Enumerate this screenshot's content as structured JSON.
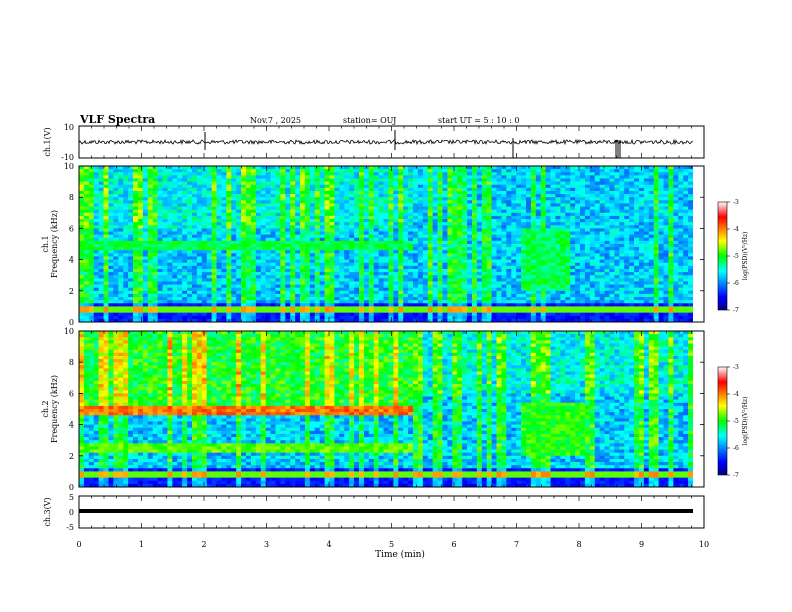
{
  "header": {
    "title": "VLF Spectra",
    "date": "Nov.7 , 2025",
    "station": "station= OUJ",
    "start": "start UT = 5 : 10 : 0"
  },
  "chart_data": [
    {
      "type": "line",
      "ylabel": "ch.1(V)",
      "ylim": [
        -10,
        10
      ],
      "yticks": [
        "10",
        "-10"
      ],
      "xlim": [
        0,
        10
      ],
      "description_free": true
    },
    {
      "type": "heatmap",
      "ylabel_line1": "ch.1",
      "ylabel_line2": "Frequency (kHz)",
      "ylim": [
        0,
        10
      ],
      "yticks": [
        "0",
        "2",
        "4",
        "6",
        "8",
        "10"
      ],
      "xlim": [
        0,
        10
      ],
      "colorbar": {
        "label": "log(PSD)(V²/Hz)",
        "range": [
          -7,
          -3
        ],
        "ticks": [
          "-3",
          "-4",
          "-5",
          "-6",
          "-7"
        ]
      }
    },
    {
      "type": "heatmap",
      "ylabel_line1": "ch.2",
      "ylabel_line2": "Frequency (kHz)",
      "ylim": [
        0,
        10
      ],
      "yticks": [
        "0",
        "2",
        "4",
        "6",
        "8",
        "10"
      ],
      "xlim": [
        0,
        10
      ],
      "colorbar": {
        "label": "log(PSD)(V²/Hz)",
        "range": [
          -7,
          -3
        ],
        "ticks": [
          "-3",
          "-4",
          "-5",
          "-6",
          "-7"
        ]
      }
    },
    {
      "type": "line",
      "ylabel": "ch.3(V)",
      "ylim": [
        -5,
        5
      ],
      "yticks": [
        "5",
        "0",
        "-5"
      ],
      "xlim": [
        0,
        10
      ],
      "xlabel": "Time (min)",
      "xticks": [
        "0",
        "1",
        "2",
        "3",
        "4",
        "5",
        "6",
        "7",
        "8",
        "9",
        "10"
      ]
    }
  ]
}
